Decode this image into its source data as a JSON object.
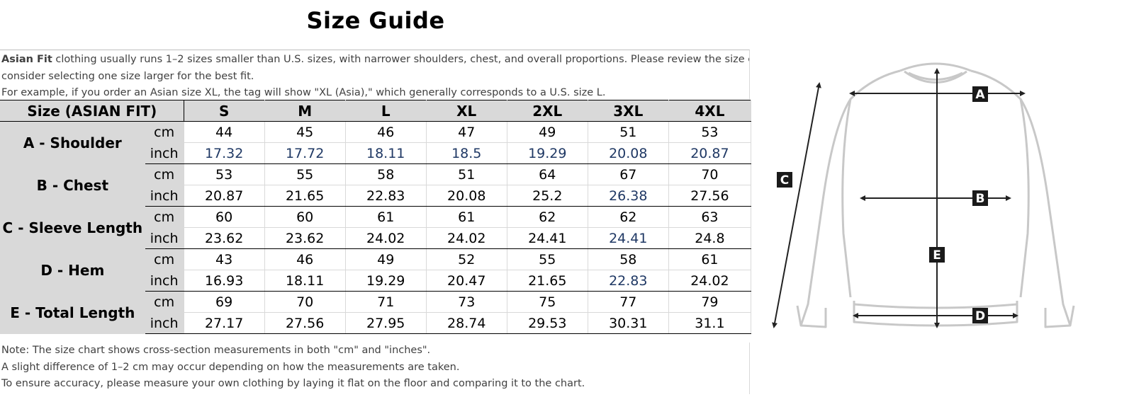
{
  "title": "Size Guide",
  "intro": {
    "bold_prefix": "Asian Fit",
    "line1_rest": " clothing usually runs 1–2 sizes smaller than U.S. sizes, with narrower shoulders, chest, and overall proportions. Please review the size chart carefully or",
    "line2": "consider selecting one size larger for the best fit.",
    "line3": "For example, if you order an Asian size XL, the tag will show \"XL (Asia),\" which generally corresponds to a U.S. size L."
  },
  "table": {
    "header_label": "Size (ASIAN FIT)",
    "sizes": [
      "S",
      "M",
      "L",
      "XL",
      "2XL",
      "3XL",
      "4XL"
    ],
    "unit_cm": "cm",
    "unit_inch": "inch",
    "rows": [
      {
        "label": "A - Shoulder",
        "cm": [
          "44",
          "45",
          "46",
          "47",
          "49",
          "51",
          "53"
        ],
        "inch": [
          "17.32",
          "17.72",
          "18.11",
          "18.5",
          "19.29",
          "20.08",
          "20.87"
        ],
        "inch_blue": [
          true,
          true,
          true,
          true,
          true,
          true,
          true
        ]
      },
      {
        "label": "B - Chest",
        "cm": [
          "53",
          "55",
          "58",
          "51",
          "64",
          "67",
          "70"
        ],
        "inch": [
          "20.87",
          "21.65",
          "22.83",
          "20.08",
          "25.2",
          "26.38",
          "27.56"
        ],
        "inch_blue": [
          false,
          false,
          false,
          false,
          false,
          true,
          false
        ]
      },
      {
        "label": "C - Sleeve Length",
        "cm": [
          "60",
          "60",
          "61",
          "61",
          "62",
          "62",
          "63"
        ],
        "inch": [
          "23.62",
          "23.62",
          "24.02",
          "24.02",
          "24.41",
          "24.41",
          "24.8"
        ],
        "inch_blue": [
          false,
          false,
          false,
          false,
          false,
          true,
          false
        ]
      },
      {
        "label": "D - Hem",
        "cm": [
          "43",
          "46",
          "49",
          "52",
          "55",
          "58",
          "61"
        ],
        "inch": [
          "16.93",
          "18.11",
          "19.29",
          "20.47",
          "21.65",
          "22.83",
          "24.02"
        ],
        "inch_blue": [
          false,
          false,
          false,
          false,
          false,
          true,
          false
        ]
      },
      {
        "label": "E - Total Length",
        "cm": [
          "69",
          "70",
          "71",
          "73",
          "75",
          "77",
          "79"
        ],
        "inch": [
          "27.17",
          "27.56",
          "27.95",
          "28.74",
          "29.53",
          "30.31",
          "31.1"
        ],
        "inch_blue": [
          false,
          false,
          false,
          false,
          false,
          false,
          false
        ]
      }
    ]
  },
  "notes": [
    "Note: The size chart shows cross-section measurements in both \"cm\" and \"inches\".",
    "A slight difference of 1–2 cm may occur depending on how the measurements are taken.",
    "To ensure accuracy, please measure your own clothing by laying it flat on the floor and comparing it to the chart."
  ],
  "diagram": {
    "markers": {
      "a": "A",
      "b": "B",
      "c": "C",
      "d": "D",
      "e": "E"
    },
    "colors": {
      "outline": "#c8c8c8",
      "arrow": "#222222",
      "marker_bg": "#1a1a1a",
      "marker_text": "#ffffff",
      "header_bg": "#d9d9d9",
      "blue_value": "#1f3864"
    }
  }
}
